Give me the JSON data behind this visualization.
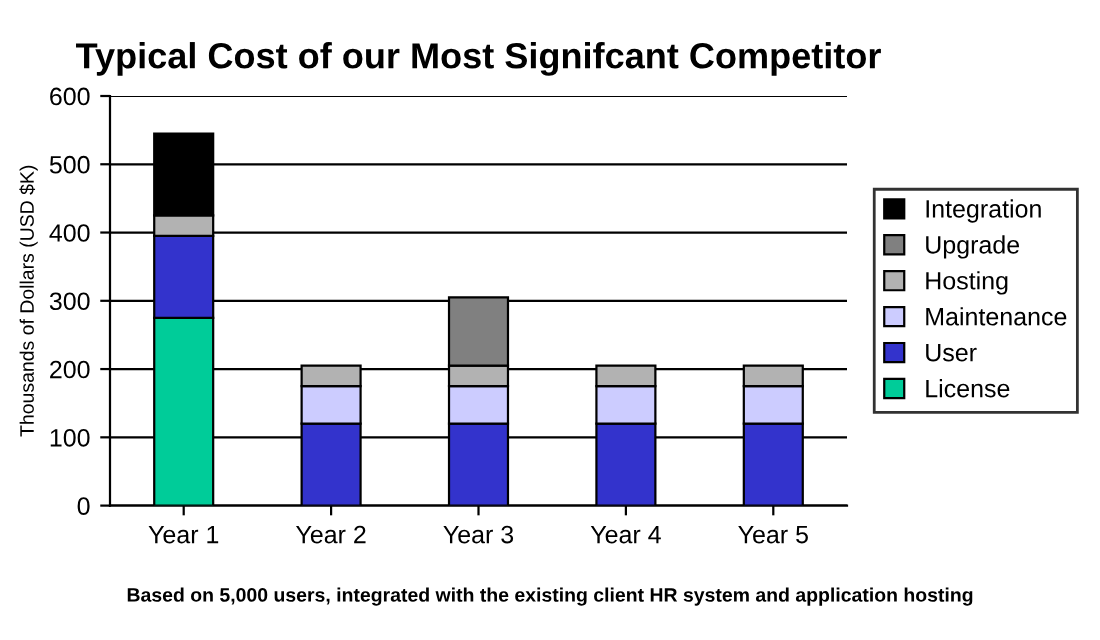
{
  "chart_data": {
    "type": "bar",
    "stacked": true,
    "title": "Typical Cost of our Most Signifcant Competitor",
    "ylabel": "Thousands of Dollars (USD $K)",
    "categories": [
      "Year 1",
      "Year 2",
      "Year 3",
      "Year 4",
      "Year 5"
    ],
    "series": [
      {
        "name": "License",
        "color": "#00cc99",
        "values": [
          275,
          null,
          null,
          null,
          null
        ]
      },
      {
        "name": "User",
        "color": "#3333cc",
        "values": [
          120,
          120,
          120,
          120,
          120
        ]
      },
      {
        "name": "Maintenance",
        "color": "#ccccff",
        "values": [
          null,
          55,
          55,
          55,
          55
        ]
      },
      {
        "name": "Hosting",
        "color": "#b2b2b2",
        "values": [
          30,
          30,
          30,
          30,
          30
        ]
      },
      {
        "name": "Upgrade",
        "color": "#808080",
        "values": [
          null,
          null,
          100,
          null,
          null
        ]
      },
      {
        "name": "Integration",
        "color": "#000000",
        "values": [
          120,
          null,
          null,
          null,
          null
        ]
      }
    ],
    "ylim": [
      0,
      600
    ],
    "yticks": [
      0,
      100,
      200,
      300,
      400,
      500,
      600
    ],
    "grid": "y",
    "legend": "right",
    "annotations": [
      "Based on 5,000 users, integrated with the existing client HR system and application hosting"
    ]
  }
}
